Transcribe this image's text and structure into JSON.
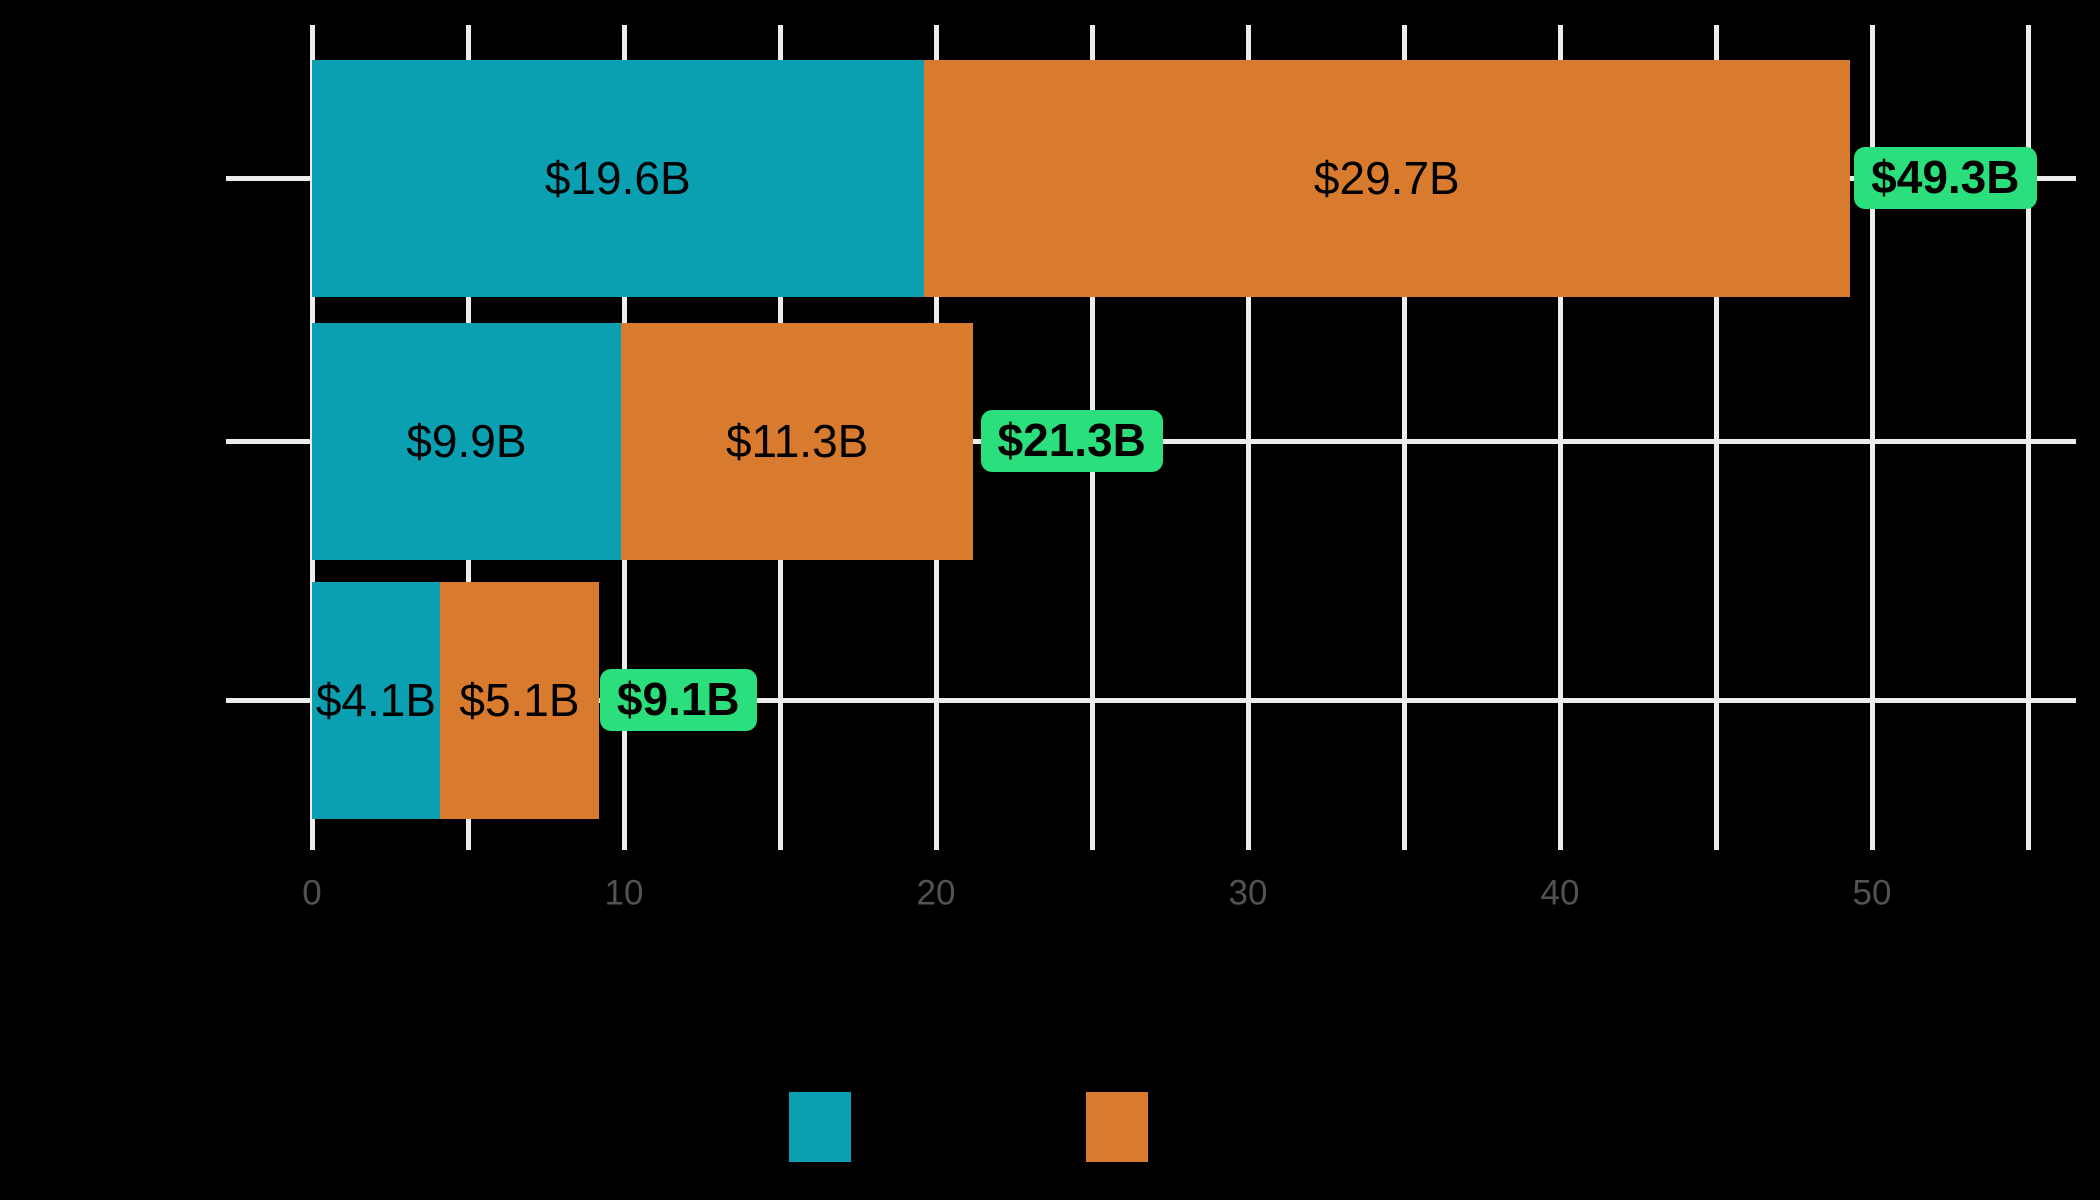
{
  "chart": {
    "background": "#000000",
    "colors": {
      "teal": "#0A9FB1",
      "orange": "#D87B2E",
      "total_badge_green": "#2BDF7C",
      "gridline": "#ECECEC",
      "tick_label_gray": "#525252",
      "bar_label_text": "#000000"
    },
    "x_axis": {
      "ticks": [
        {
          "label": "0",
          "value": 0
        },
        {
          "label": "10",
          "value": 10
        },
        {
          "label": "20",
          "value": 20
        },
        {
          "label": "30",
          "value": 30
        },
        {
          "label": "40",
          "value": 40
        },
        {
          "label": "50",
          "value": 50
        }
      ],
      "minor_grid_step": 5,
      "grid_max_unit": 55
    },
    "rows": [
      {
        "segments": [
          {
            "value": 19.6,
            "label": "$19.6B",
            "color_key": "teal"
          },
          {
            "value": 29.7,
            "label": "$29.7B",
            "color_key": "orange"
          }
        ],
        "total_value": 49.3,
        "total_label": "$49.3B"
      },
      {
        "segments": [
          {
            "value": 9.9,
            "label": "$9.9B",
            "color_key": "teal"
          },
          {
            "value": 11.3,
            "label": "$11.3B",
            "color_key": "orange"
          }
        ],
        "total_value": 21.3,
        "total_label": "$21.3B"
      },
      {
        "segments": [
          {
            "value": 4.1,
            "label": "$4.1B",
            "color_key": "teal"
          },
          {
            "value": 5.1,
            "label": "$5.1B",
            "color_key": "orange"
          }
        ],
        "total_value": 9.1,
        "total_label": "$9.1B"
      }
    ],
    "legend": {
      "swatches": [
        {
          "color_key": "teal"
        },
        {
          "color_key": "orange"
        }
      ]
    }
  },
  "chart_data": {
    "type": "bar",
    "orientation": "horizontal",
    "stacked": true,
    "categories": [
      "",
      "",
      ""
    ],
    "series": [
      {
        "name": "",
        "color": "#0A9FB1",
        "values": [
          19.6,
          9.9,
          4.1
        ]
      },
      {
        "name": "",
        "color": "#D87B2E",
        "values": [
          29.7,
          11.3,
          5.1
        ]
      }
    ],
    "segment_labels": [
      [
        "$19.6B",
        "$9.9B",
        "$4.1B"
      ],
      [
        "$29.7B",
        "$11.3B",
        "$5.1B"
      ]
    ],
    "totals": [
      49.3,
      21.3,
      9.1
    ],
    "total_labels": [
      "$49.3B",
      "$21.3B",
      "$9.1B"
    ],
    "xticks": [
      0,
      10,
      20,
      30,
      40,
      50
    ],
    "minor_gridlines_every": 5,
    "xlim": [
      -2.5,
      56.6
    ],
    "grid": "white vertical major+minor gridlines and white horizontal category gridlines on black background",
    "legend_position": "bottom"
  }
}
